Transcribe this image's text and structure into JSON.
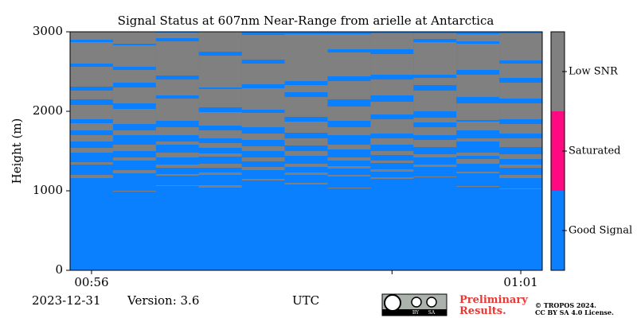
{
  "chart_data": {
    "type": "heatmap",
    "title": "Signal Status at 607nm Near-Range from arielle at Antarctica",
    "ylabel": "Height (m)",
    "xlabel": "UTC",
    "ylim": [
      0,
      3000
    ],
    "yticks": [
      0,
      1000,
      2000,
      3000
    ],
    "xlim": [
      55.75,
      61.25
    ],
    "xticks": [
      {
        "value": 56,
        "label": "00:56"
      },
      {
        "value": 61,
        "label": "01:01"
      }
    ],
    "minor_xticks": [
      59.5
    ],
    "x_edges": [
      55.75,
      56.25,
      56.75,
      57.25,
      57.75,
      58.25,
      58.75,
      59.25,
      59.75,
      60.25,
      60.75,
      61.25
    ],
    "series": [
      {
        "name": "Good Signal",
        "color": "#0a80ff"
      },
      {
        "name": "Saturated",
        "color": "#ff0a80"
      },
      {
        "name": "Low SNR",
        "color": "#808080",
        "ranges": [
          [
            [
              1160,
              1200
            ],
            [
              1330,
              1360
            ],
            [
              1480,
              1540
            ],
            [
              1620,
              1700
            ],
            [
              1760,
              1850
            ],
            [
              1900,
              2080
            ],
            [
              2150,
              2260
            ],
            [
              2310,
              2560
            ],
            [
              2600,
              2870
            ],
            [
              2900,
              3000
            ]
          ],
          [
            [
              990,
              1000
            ],
            [
              1220,
              1260
            ],
            [
              1380,
              1420
            ],
            [
              1500,
              1580
            ],
            [
              1700,
              1760
            ],
            [
              1840,
              2030
            ],
            [
              2100,
              2300
            ],
            [
              2360,
              2520
            ],
            [
              2560,
              2830
            ],
            [
              2850,
              3000
            ]
          ],
          [
            [
              1060,
              1070
            ],
            [
              1190,
              1210
            ],
            [
              1290,
              1330
            ],
            [
              1420,
              1480
            ],
            [
              1580,
              1620
            ],
            [
              1700,
              1800
            ],
            [
              1880,
              2160
            ],
            [
              2200,
              2400
            ],
            [
              2450,
              2880
            ],
            [
              2920,
              2990
            ]
          ],
          [
            [
              1040,
              1070
            ],
            [
              1200,
              1230
            ],
            [
              1290,
              1340
            ],
            [
              1430,
              1470
            ],
            [
              1540,
              1600
            ],
            [
              1660,
              1760
            ],
            [
              1820,
              1990
            ],
            [
              2050,
              2280
            ],
            [
              2300,
              2700
            ],
            [
              2750,
              3000
            ]
          ],
          [
            [
              1130,
              1150
            ],
            [
              1260,
              1300
            ],
            [
              1370,
              1420
            ],
            [
              1500,
              1560
            ],
            [
              1640,
              1720
            ],
            [
              1800,
              1980
            ],
            [
              2020,
              2290
            ],
            [
              2340,
              2600
            ],
            [
              2650,
              2960
            ]
          ],
          [
            [
              1080,
              1100
            ],
            [
              1200,
              1230
            ],
            [
              1300,
              1340
            ],
            [
              1440,
              1500
            ],
            [
              1570,
              1660
            ],
            [
              1730,
              1870
            ],
            [
              1930,
              2180
            ],
            [
              2240,
              2330
            ],
            [
              2380,
              2970
            ]
          ],
          [
            [
              1030,
              1040
            ],
            [
              1180,
              1200
            ],
            [
              1280,
              1310
            ],
            [
              1380,
              1420
            ],
            [
              1520,
              1580
            ],
            [
              1700,
              1800
            ],
            [
              1880,
              2060
            ],
            [
              2150,
              2380
            ],
            [
              2440,
              2740
            ],
            [
              2780,
              2970
            ]
          ],
          [
            [
              1150,
              1170
            ],
            [
              1240,
              1270
            ],
            [
              1350,
              1380
            ],
            [
              1450,
              1500
            ],
            [
              1580,
              1660
            ],
            [
              1720,
              1900
            ],
            [
              1960,
              2120
            ],
            [
              2200,
              2400
            ],
            [
              2460,
              2720
            ],
            [
              2780,
              2980
            ]
          ],
          [
            [
              1170,
              1180
            ],
            [
              1300,
              1330
            ],
            [
              1420,
              1460
            ],
            [
              1550,
              1640
            ],
            [
              1700,
              1800
            ],
            [
              1860,
              1920
            ],
            [
              2000,
              2260
            ],
            [
              2330,
              2420
            ],
            [
              2460,
              2870
            ],
            [
              2910,
              2980
            ]
          ],
          [
            [
              1050,
              1060
            ],
            [
              1220,
              1240
            ],
            [
              1340,
              1400
            ],
            [
              1440,
              1480
            ],
            [
              1620,
              1660
            ],
            [
              1760,
              1870
            ],
            [
              1890,
              2100
            ],
            [
              2180,
              2460
            ],
            [
              2520,
              2850
            ],
            [
              2880,
              2970
            ]
          ],
          [
            [
              1020,
              1030
            ],
            [
              1160,
              1200
            ],
            [
              1290,
              1330
            ],
            [
              1400,
              1460
            ],
            [
              1550,
              1660
            ],
            [
              1720,
              1840
            ],
            [
              1900,
              2100
            ],
            [
              2160,
              2360
            ],
            [
              2420,
              2600
            ],
            [
              2640,
              2980
            ]
          ]
        ]
      }
    ]
  },
  "footer": {
    "date": "2023-12-31",
    "version": "Version: 3.6",
    "notice": "Preliminary Results.",
    "badge": [
      "BY",
      "SA"
    ],
    "copyright": [
      "© TROPOS 2024.",
      "CC BY SA 4.0 License."
    ]
  }
}
